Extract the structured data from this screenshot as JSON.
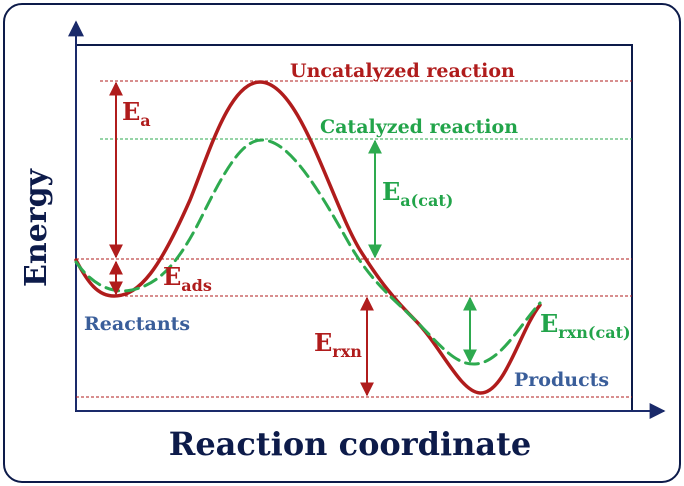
{
  "axes": {
    "y_label": "Energy",
    "x_label": "Reaction coordinate"
  },
  "labels": {
    "uncatalyzed": "Uncatalyzed reaction",
    "catalyzed": "Catalyzed reaction",
    "ea_main": "E",
    "ea_sub": "a",
    "ea_cat_main": "E",
    "ea_cat_sub": "a(cat)",
    "eads_main": "E",
    "eads_sub": "ads",
    "erxn_main": "E",
    "erxn_sub": "rxn",
    "erxn_cat_main": "E",
    "erxn_cat_sub": "rxn(cat)",
    "reactants": "Reactants",
    "products": "Products"
  },
  "colors": {
    "uncatalyzed": "#b01c1c",
    "catalyzed": "#2eaa4f",
    "species": "#3a5e9a",
    "frame": "#0d1b4a"
  }
}
